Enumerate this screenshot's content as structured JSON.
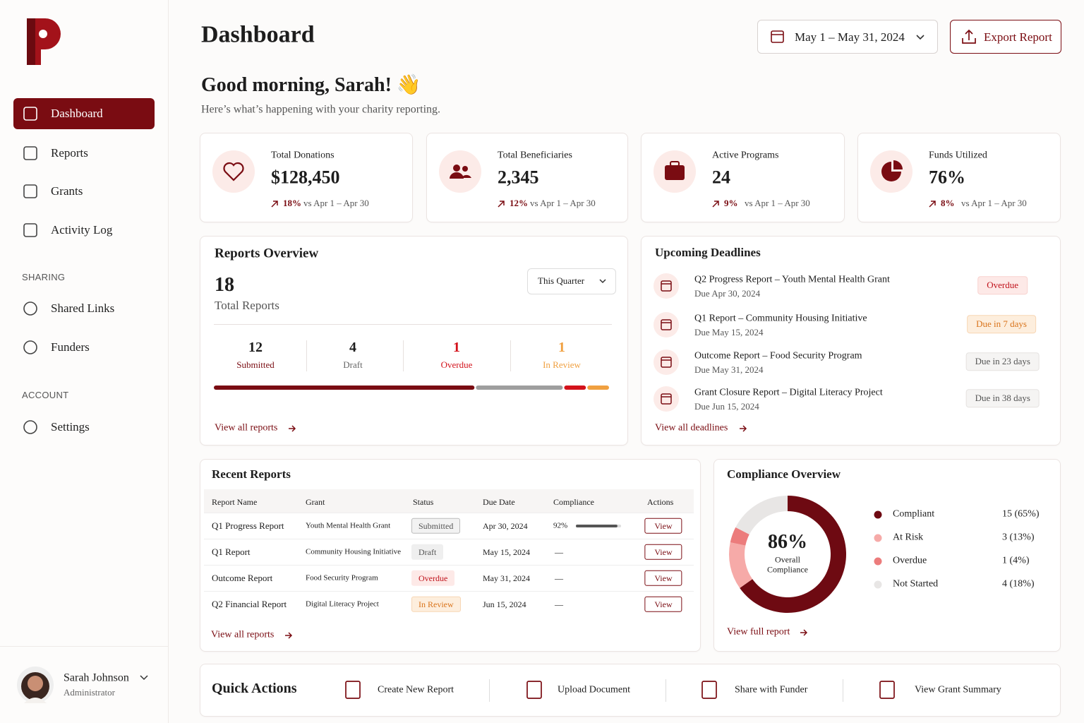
{
  "sidebar": {
    "nav": [
      "Dashboard",
      "Reports",
      "Grants",
      "Activity Log"
    ],
    "sections": [
      {
        "title": "SHARING",
        "items": [
          "Shared Links",
          "Funders"
        ]
      },
      {
        "title": "ACCOUNT",
        "items": [
          "Settings"
        ]
      }
    ],
    "user": {
      "name": "Sarah Johnson",
      "role": "Administrator"
    }
  },
  "header": {
    "title": "Dashboard",
    "date_range": "May 1 – May 31, 2024",
    "export": "Export Report",
    "greeting": "Good morning, Sarah! 👋",
    "subtitle": "Here’s what’s happening with your charity reporting."
  },
  "stats": [
    {
      "label": "Total Donations",
      "value": "$128,450",
      "change": "18%",
      "period": "vs Apr 1 – Apr 30"
    },
    {
      "label": "Total Beneficiaries",
      "value": "2,345",
      "change": "12%",
      "period": "vs Apr 1 – Apr 30"
    },
    {
      "label": "Active Programs",
      "value": "24",
      "change": "9%",
      "period": "vs Apr 1 – Apr 30"
    },
    {
      "label": "Funds Utilized",
      "value": "76%",
      "change": "8%",
      "period": "vs Apr 1 – Apr 30"
    }
  ],
  "reports_overview": {
    "title": "Reports Overview",
    "total": "18",
    "total_label": "Total Reports",
    "filter": "This Quarter",
    "breakdown": [
      {
        "count": 12,
        "label": "Submitted",
        "color": "#7a0c12"
      },
      {
        "count": 4,
        "label": "Draft",
        "color": "#9e9e9e"
      },
      {
        "count": 1,
        "label": "Overdue",
        "color": "#d3121b"
      },
      {
        "count": 1,
        "label": "In Review",
        "color": "#f0a040"
      }
    ],
    "link": "View all reports"
  },
  "deadlines": {
    "title": "Upcoming Deadlines",
    "items": [
      {
        "name": "Q2 Progress Report – Youth Mental Health Grant",
        "due": "Due Apr 30, 2024",
        "badge": "Overdue"
      },
      {
        "name": "Q1 Report – Community Housing Initiative",
        "due": "Due May 15, 2024",
        "badge": "Due in 7 days"
      },
      {
        "name": "Outcome Report – Food Security Program",
        "due": "Due May 31, 2024",
        "badge": "Due in 23 days"
      },
      {
        "name": "Grant Closure Report – Digital Literacy Project",
        "due": "Due Jun 15, 2024",
        "badge": "Due in 38 days"
      }
    ],
    "link": "View all deadlines"
  },
  "recent_reports": {
    "title": "Recent Reports",
    "columns": [
      "Report Name",
      "Grant",
      "Status",
      "Due Date",
      "Compliance",
      "Actions"
    ],
    "rows": [
      {
        "name": "Q1 Progress Report",
        "grant": "Youth Mental Health Grant",
        "status": "Submitted",
        "due": "Apr 30, 2024",
        "compliance": 92,
        "compliance_label": "92%",
        "action": "View"
      },
      {
        "name": "Q1 Report",
        "grant": "Community Housing Initiative",
        "status": "Draft",
        "due": "May 15, 2024",
        "compliance": null,
        "compliance_label": "—",
        "action": "View"
      },
      {
        "name": "Outcome Report",
        "grant": "Food Security Program",
        "status": "Overdue",
        "due": "May 31, 2024",
        "compliance": null,
        "compliance_label": "—",
        "action": "View"
      },
      {
        "name": "Q2 Financial Report",
        "grant": "Digital Literacy Project",
        "status": "In Review",
        "due": "Jun 15, 2024",
        "compliance": null,
        "compliance_label": "—",
        "action": "View"
      }
    ],
    "link": "View all reports"
  },
  "compliance": {
    "title": "Compliance Overview",
    "center_value": "86%",
    "center_label": "Overall Compliance",
    "items": [
      {
        "name": "Compliant",
        "value": 15,
        "label": "15 (65%)",
        "color": "#6e0a12"
      },
      {
        "name": "At Risk",
        "value": 3,
        "label": "3 (13%)",
        "color": "#f6aaa8"
      },
      {
        "name": "Overdue",
        "value": 1,
        "label": "1 (4%)",
        "color": "#ec7c7c"
      },
      {
        "name": "Not Started",
        "value": 4,
        "label": "4 (18%)",
        "color": "#e8e6e5"
      }
    ],
    "link": "View full report"
  },
  "quick_actions": {
    "title": "Quick Actions",
    "items": [
      "Create New Report",
      "Upload Document",
      "Share with Funder",
      "View Grant Summary"
    ]
  }
}
